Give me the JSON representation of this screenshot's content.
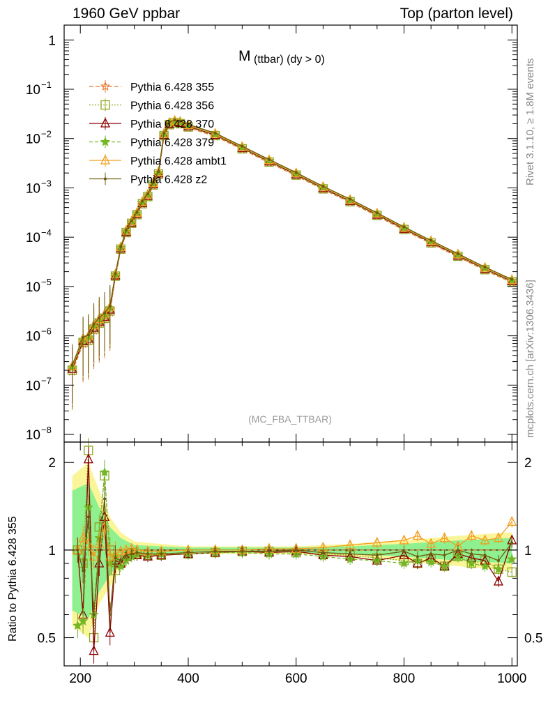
{
  "header": {
    "left": "1960 GeV ppbar",
    "right": "Top (parton level)"
  },
  "side_labels": {
    "rivet": "Rivet 3.1.10, ≥ 1.8M events",
    "mcplots": "mcplots.cern.ch [arXiv:1306.3436]"
  },
  "chart_data": {
    "type": "line",
    "title_main": "M",
    "title_sub": "(ttbar) (dy > 0)",
    "watermark": "(MC_FBA_TTBAR)",
    "ylabel_ratio": "Ratio to Pythia 6.428 355",
    "x_ticks": [
      "200",
      "400",
      "600",
      "800",
      "1000"
    ],
    "x_tick_values": [
      200,
      400,
      600,
      800,
      1000
    ],
    "xlim": [
      170,
      1010
    ],
    "upper": {
      "yscale": "log",
      "ylim": [
        7e-09,
        2.0
      ],
      "tick_labels": [
        {
          "v": 1,
          "base": "1",
          "exp": ""
        },
        {
          "v": 0.1,
          "base": "10",
          "exp": "−1"
        },
        {
          "v": 0.01,
          "base": "10",
          "exp": "−2"
        },
        {
          "v": 0.001,
          "base": "10",
          "exp": "−3"
        },
        {
          "v": 0.0001,
          "base": "10",
          "exp": "−4"
        },
        {
          "v": 1e-05,
          "base": "10",
          "exp": "−5"
        },
        {
          "v": 1e-06,
          "base": "10",
          "exp": "−6"
        },
        {
          "v": 1e-07,
          "base": "10",
          "exp": "−7"
        },
        {
          "v": 1e-08,
          "base": "10",
          "exp": "−8"
        }
      ],
      "x": [
        185,
        205,
        215,
        225,
        235,
        245,
        255,
        265,
        275,
        285,
        295,
        305,
        315,
        325,
        335,
        345,
        355,
        365,
        375,
        385,
        400,
        450,
        500,
        550,
        600,
        650,
        700,
        750,
        800,
        850,
        900,
        950,
        1000
      ],
      "y": [
        2.2e-07,
        8e-07,
        9e-07,
        1.5e-06,
        2e-06,
        2.5e-06,
        3.5e-06,
        1.7e-05,
        6e-05,
        0.00013,
        0.0002,
        0.0003,
        0.0005,
        0.0007,
        0.0012,
        0.002,
        0.012,
        0.02,
        0.022,
        0.021,
        0.018,
        0.012,
        0.0065,
        0.0035,
        0.0019,
        0.001,
        0.00055,
        0.00029,
        0.00015,
        8e-05,
        4.3e-05,
        2.3e-05,
        1.3e-05
      ]
    },
    "ratio": {
      "yscale": "log",
      "ylim": [
        0.4,
        2.35
      ],
      "tick_labels": [
        {
          "v": 2,
          "label": "2"
        },
        {
          "v": 1,
          "label": "1"
        },
        {
          "v": 0.5,
          "label": "0.5"
        }
      ],
      "x": [
        195,
        205,
        215,
        225,
        235,
        245,
        255,
        265,
        275,
        285,
        295,
        305,
        325,
        350,
        400,
        450,
        500,
        550,
        600,
        650,
        700,
        750,
        800,
        825,
        850,
        875,
        900,
        925,
        950,
        975,
        1000
      ]
    },
    "series": [
      {
        "name": "Pythia 6.428 355",
        "color": "#e8762b",
        "marker": "star",
        "dash": "6,3",
        "ratio": [
          1.0,
          1.0,
          1.0,
          1.0,
          1.0,
          1.0,
          1.0,
          1.0,
          1.0,
          1.0,
          1.0,
          1.0,
          1.0,
          1.0,
          1.0,
          1.0,
          1.0,
          1.0,
          1.0,
          1.0,
          1.0,
          1.0,
          1.0,
          1.0,
          1.0,
          1.0,
          1.0,
          1.0,
          1.0,
          1.0,
          1.0
        ]
      },
      {
        "name": "Pythia 6.428 356",
        "color": "#8ca520",
        "marker": "square",
        "dash": "2,2",
        "ratio": [
          1.0,
          0.9,
          2.2,
          0.5,
          1.2,
          1.8,
          1.0,
          0.85,
          0.9,
          0.95,
          0.98,
          0.97,
          0.96,
          0.96,
          0.97,
          0.98,
          0.99,
          0.99,
          0.98,
          0.97,
          0.96,
          0.94,
          0.92,
          0.9,
          0.93,
          0.88,
          0.95,
          0.9,
          0.92,
          0.86,
          0.84
        ]
      },
      {
        "name": "Pythia 6.428 370",
        "color": "#8b0000",
        "marker": "triangle",
        "dash": "",
        "ratio": [
          1.0,
          0.6,
          2.05,
          0.45,
          0.9,
          1.3,
          0.52,
          0.92,
          0.9,
          0.95,
          0.96,
          0.96,
          0.95,
          0.96,
          0.97,
          0.98,
          0.99,
          0.98,
          0.99,
          0.96,
          0.95,
          0.92,
          0.96,
          0.9,
          0.94,
          0.88,
          0.97,
          0.94,
          0.92,
          0.78,
          1.08
        ]
      },
      {
        "name": "Pythia 6.428 379",
        "color": "#74b624",
        "marker": "star5",
        "dash": "5,3",
        "ratio": [
          0.55,
          0.57,
          1.4,
          0.6,
          1.1,
          1.85,
          0.9,
          0.95,
          0.88,
          0.92,
          0.95,
          0.97,
          0.96,
          0.97,
          0.97,
          0.98,
          0.98,
          0.97,
          0.97,
          0.95,
          0.93,
          0.92,
          0.9,
          0.92,
          0.91,
          0.88,
          0.95,
          0.9,
          0.88,
          0.86,
          0.93
        ]
      },
      {
        "name": "Pythia 6.428 ambt1",
        "color": "#f0a020",
        "marker": "triangle",
        "dash": "",
        "ratio": [
          1.0,
          1.1,
          1.05,
          0.95,
          1.05,
          1.2,
          0.95,
          0.97,
          0.99,
          1.0,
          1.01,
          1.0,
          0.99,
          0.99,
          1.0,
          1.0,
          1.0,
          1.01,
          1.01,
          1.02,
          1.04,
          1.06,
          1.08,
          1.12,
          1.05,
          1.1,
          1.03,
          1.12,
          1.08,
          1.1,
          1.25
        ]
      },
      {
        "name": "Pythia 6.428 z2",
        "color": "#6b5a10",
        "marker": "dot",
        "dash": "",
        "ratio": [
          1.0,
          0.85,
          1.3,
          0.6,
          1.0,
          1.5,
          0.6,
          0.94,
          0.92,
          0.96,
          0.97,
          0.98,
          0.97,
          0.97,
          0.98,
          0.99,
          0.99,
          0.99,
          1.0,
          0.98,
          0.97,
          0.96,
          0.99,
          0.95,
          0.97,
          0.96,
          1.0,
          0.97,
          0.96,
          0.92,
          1.06
        ]
      }
    ],
    "ratio_band_yellow": [
      [
        185,
        1.8,
        0.55
      ],
      [
        215,
        2.0,
        0.5
      ],
      [
        235,
        1.6,
        0.65
      ],
      [
        255,
        1.3,
        0.75
      ],
      [
        275,
        1.15,
        0.88
      ],
      [
        300,
        1.07,
        0.94
      ],
      [
        400,
        1.03,
        0.97
      ],
      [
        600,
        1.03,
        0.97
      ],
      [
        700,
        1.05,
        0.95
      ],
      [
        800,
        1.08,
        0.92
      ],
      [
        900,
        1.12,
        0.88
      ],
      [
        1000,
        1.15,
        0.85
      ]
    ],
    "ratio_band_green": [
      [
        185,
        1.6,
        0.62
      ],
      [
        215,
        1.7,
        0.58
      ],
      [
        235,
        1.4,
        0.72
      ],
      [
        255,
        1.2,
        0.82
      ],
      [
        275,
        1.1,
        0.91
      ],
      [
        300,
        1.04,
        0.96
      ],
      [
        400,
        1.02,
        0.98
      ],
      [
        600,
        1.02,
        0.98
      ],
      [
        700,
        1.03,
        0.97
      ],
      [
        800,
        1.05,
        0.95
      ],
      [
        900,
        1.08,
        0.92
      ],
      [
        1000,
        1.1,
        0.9
      ]
    ]
  }
}
